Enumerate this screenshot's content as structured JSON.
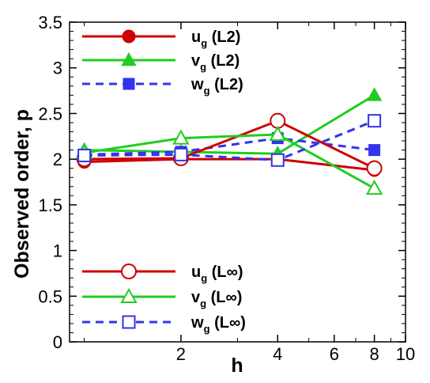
{
  "chart_data": {
    "type": "line",
    "title": "",
    "xlabel": "h",
    "ylabel": "Observed order, p",
    "xscale": "log",
    "xlim": [
      0.9,
      10
    ],
    "ylim": [
      0,
      3.5
    ],
    "x_ticks": [
      2,
      4,
      6,
      8,
      10
    ],
    "y_ticks": [
      "0",
      "0.5",
      "1",
      "1.5",
      "2",
      "2.5",
      "3",
      "3.5"
    ],
    "grid": false,
    "legend_placement": [
      "top-left",
      "bottom-left"
    ],
    "series": [
      {
        "key": "u_l2",
        "name": "u_g (L2)",
        "var": "u",
        "sub": "g",
        "norm": "(L2)",
        "color": "#cc0000",
        "marker": "circle",
        "filled": true,
        "dash": false,
        "legend_group": 0,
        "x": [
          1,
          2,
          4,
          8
        ],
        "y": [
          1.97,
          2.0,
          2.0,
          1.88
        ]
      },
      {
        "key": "v_l2",
        "name": "v_g (L2)",
        "var": "v",
        "sub": "g",
        "norm": "(L2)",
        "color": "#22cc22",
        "marker": "triangle",
        "filled": true,
        "dash": false,
        "legend_group": 0,
        "x": [
          1,
          2,
          4,
          8
        ],
        "y": [
          2.1,
          2.08,
          2.06,
          2.7
        ]
      },
      {
        "key": "w_l2",
        "name": "w_g (L2)",
        "var": "w",
        "sub": "g",
        "norm": "(L2)",
        "color": "#3333ee",
        "marker": "square",
        "filled": true,
        "dash": true,
        "legend_group": 0,
        "x": [
          1,
          2,
          4,
          8
        ],
        "y": [
          2.05,
          2.08,
          2.23,
          2.1
        ]
      },
      {
        "key": "u_linf",
        "name": "u_g (L∞)",
        "var": "u",
        "sub": "g",
        "norm": "(L∞)",
        "color": "#cc0000",
        "marker": "circle",
        "filled": false,
        "dash": false,
        "legend_group": 1,
        "x": [
          1,
          2,
          4,
          8
        ],
        "y": [
          2.0,
          2.01,
          2.42,
          1.9
        ]
      },
      {
        "key": "v_linf",
        "name": "v_g (L∞)",
        "var": "v",
        "sub": "g",
        "norm": "(L∞)",
        "color": "#22cc22",
        "marker": "triangle",
        "filled": false,
        "dash": false,
        "legend_group": 1,
        "x": [
          1,
          2,
          4,
          8
        ],
        "y": [
          2.07,
          2.23,
          2.27,
          1.68
        ]
      },
      {
        "key": "w_linf",
        "name": "w_g (L∞)",
        "var": "w",
        "sub": "g",
        "norm": "(L∞)",
        "color": "#3333ee",
        "marker": "square",
        "filled": false,
        "dash": true,
        "legend_group": 1,
        "x": [
          1,
          2,
          4,
          8
        ],
        "y": [
          2.04,
          2.05,
          1.99,
          2.42
        ]
      }
    ]
  }
}
